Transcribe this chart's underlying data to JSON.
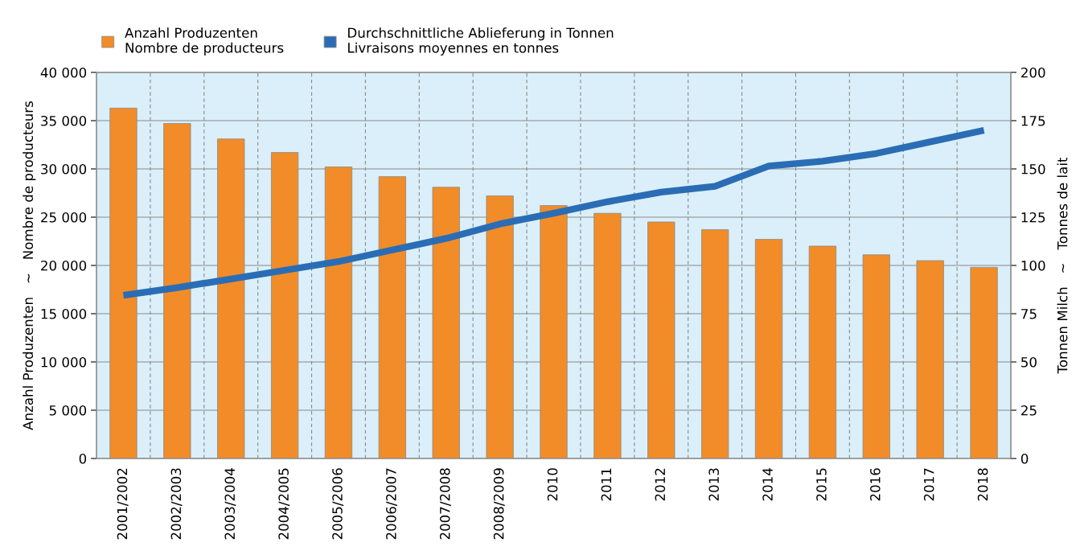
{
  "chart_data": {
    "type": "bar",
    "categories": [
      "2001/2002",
      "2002/2003",
      "2003/2004",
      "2004/2005",
      "2005/2006",
      "2006/2007",
      "2007/2008",
      "2008/2009",
      "2010",
      "2011",
      "2012",
      "2013",
      "2014",
      "2015",
      "2016",
      "2017",
      "2018"
    ],
    "series": [
      {
        "name": "Anzahl Produzenten\nNombre de producteurs",
        "color": "#f28c28",
        "values": [
          36300,
          34700,
          33100,
          31700,
          30200,
          29200,
          28100,
          27200,
          26200,
          25400,
          24500,
          23700,
          22700,
          22000,
          21100,
          20500,
          19800
        ]
      },
      {
        "name": "Durchschnittliche Ablieferung in Tonnen\nLivraisons moyennes en tonnes",
        "type": "line",
        "axis": "y2",
        "color": "#2a6db5",
        "values": [
          84.5,
          88.5,
          93,
          97.5,
          102,
          108,
          114,
          121.5,
          127,
          133,
          138,
          141,
          151.5,
          154,
          158,
          164,
          170
        ]
      }
    ],
    "ylabel": "Anzahl Produzenten   ~   Nombre de producteurs",
    "y2label": "Tonnen Milch   ~   Tonnes de lait",
    "ylim": [
      0,
      40000
    ],
    "yticks": [
      0,
      {
        "value": 5000,
        "label": "5 000"
      },
      {
        "value": 10000,
        "label": "10 000"
      },
      {
        "value": 15000,
        "label": "15 000"
      },
      {
        "value": 20000,
        "label": "20 000"
      },
      {
        "value": 25000,
        "label": "25 000"
      },
      {
        "value": 30000,
        "label": "30 000"
      },
      {
        "value": 35000,
        "label": "35 000"
      },
      {
        "value": 40000,
        "label": "40 000"
      }
    ],
    "y2lim": [
      0,
      200
    ],
    "y2ticks": [
      0,
      25,
      50,
      75,
      100,
      125,
      150,
      175,
      200
    ],
    "grid": true,
    "legend": "top left",
    "marker": "none",
    "line_style": "solid"
  }
}
